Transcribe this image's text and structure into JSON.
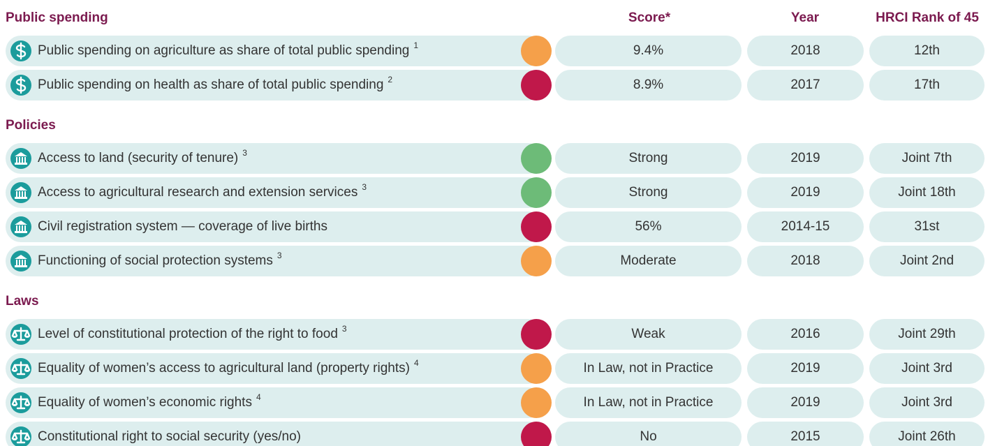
{
  "header": {
    "score": "Score*",
    "year": "Year",
    "rank": "HRCI Rank of 45"
  },
  "sections": [
    {
      "title": "Public spending",
      "rows": [
        {
          "label": "Public spending on agriculture as share of total public spending",
          "note": 1,
          "color": "#f5a04a",
          "score": "9.4%",
          "year": "2018",
          "rank": "12th"
        },
        {
          "label": "Public spending on health as share of total public spending",
          "note": 2,
          "color": "#c0184a",
          "score": "8.9%",
          "year": "2017",
          "rank": "17th"
        }
      ]
    },
    {
      "title": "Policies",
      "rows": [
        {
          "label": "Access to land (security of tenure)",
          "note": 3,
          "color": "#6dbb78",
          "score": "Strong",
          "year": "2019",
          "rank": "Joint 7th"
        },
        {
          "label": "Access to agricultural research and extension services",
          "note": 3,
          "color": "#6dbb78",
          "score": "Strong",
          "year": "2019",
          "rank": "Joint 18th"
        },
        {
          "label": "Civil registration system — coverage of live births",
          "color": "#c0184a",
          "score": "56%",
          "year": "2014-15",
          "rank": "31st"
        },
        {
          "label": "Functioning of social protection systems",
          "note": 3,
          "color": "#f5a04a",
          "score": "Moderate",
          "year": "2018",
          "rank": "Joint 2nd"
        }
      ]
    },
    {
      "title": "Laws",
      "rows": [
        {
          "label": "Level of constitutional protection of the right to food",
          "note": 3,
          "color": "#c0184a",
          "score": "Weak",
          "year": "2016",
          "rank": "Joint 29th"
        },
        {
          "label": "Equality of women’s access to agricultural land (property rights)",
          "note": 4,
          "color": "#f5a04a",
          "score": "In Law, not in Practice",
          "year": "2019",
          "rank": "Joint 3rd"
        },
        {
          "label": "Equality of women’s economic rights",
          "note": 4,
          "color": "#f5a04a",
          "score": "In Law, not in Practice",
          "year": "2019",
          "rank": "Joint 3rd"
        },
        {
          "label": "Constitutional right to social security (yes/no)",
          "color": "#c0184a",
          "score": "No",
          "year": "2015",
          "rank": "Joint 26th"
        }
      ]
    }
  ]
}
